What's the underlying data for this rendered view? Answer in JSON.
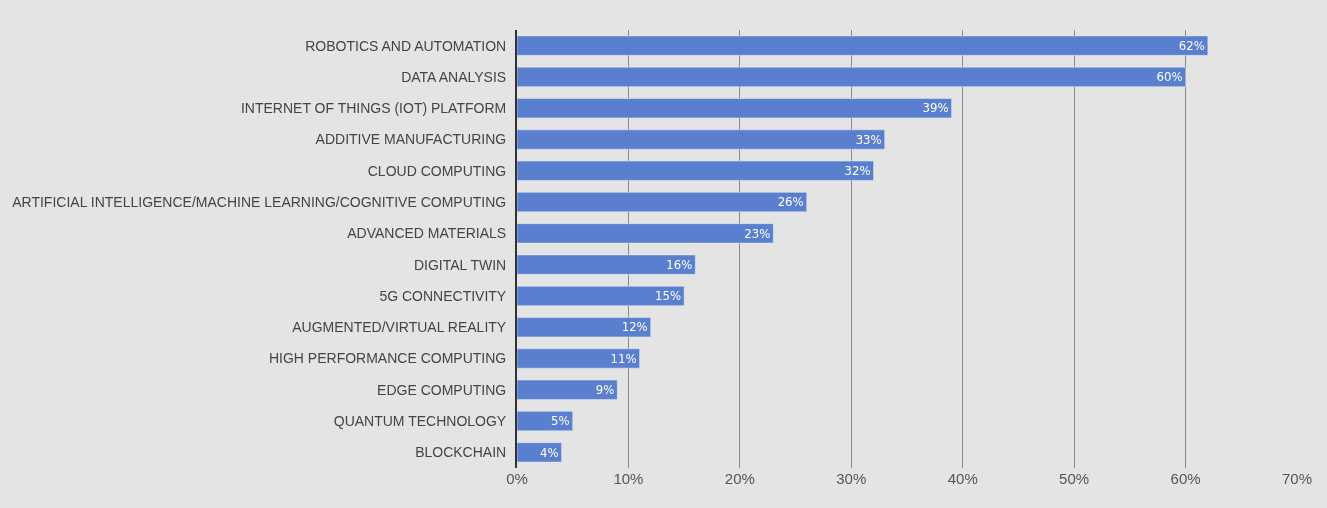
{
  "chart_data": {
    "type": "bar",
    "orientation": "horizontal",
    "categories": [
      "ROBOTICS AND AUTOMATION",
      "DATA ANALYSIS",
      "INTERNET OF THINGS (IOT) PLATFORM",
      "ADDITIVE MANUFACTURING",
      "CLOUD COMPUTING",
      "ARTIFICIAL INTELLIGENCE/MACHINE LEARNING/COGNITIVE COMPUTING",
      "ADVANCED MATERIALS",
      "DIGITAL TWIN",
      "5G CONNECTIVITY",
      "AUGMENTED/VIRTUAL REALITY",
      "HIGH PERFORMANCE COMPUTING",
      "EDGE COMPUTING",
      "QUANTUM TECHNOLOGY",
      "BLOCKCHAIN"
    ],
    "values": [
      62,
      60,
      39,
      33,
      32,
      26,
      23,
      16,
      15,
      12,
      11,
      9,
      5,
      4
    ],
    "value_labels": [
      "62%",
      "60%",
      "39%",
      "33%",
      "32%",
      "26%",
      "23%",
      "16%",
      "15%",
      "12%",
      "11%",
      "9%",
      "5%",
      "4%"
    ],
    "color": "#5b7fcf",
    "xlim": [
      0,
      70
    ],
    "xticks": [
      {
        "value": 0,
        "label": "0%"
      },
      {
        "value": 10,
        "label": "10%"
      },
      {
        "value": 20,
        "label": "20%"
      },
      {
        "value": 30,
        "label": "30%"
      },
      {
        "value": 40,
        "label": "40%"
      },
      {
        "value": 50,
        "label": "50%"
      },
      {
        "value": 60,
        "label": "60%"
      },
      {
        "value": 70,
        "label": "70%"
      }
    ],
    "grid": "x"
  }
}
